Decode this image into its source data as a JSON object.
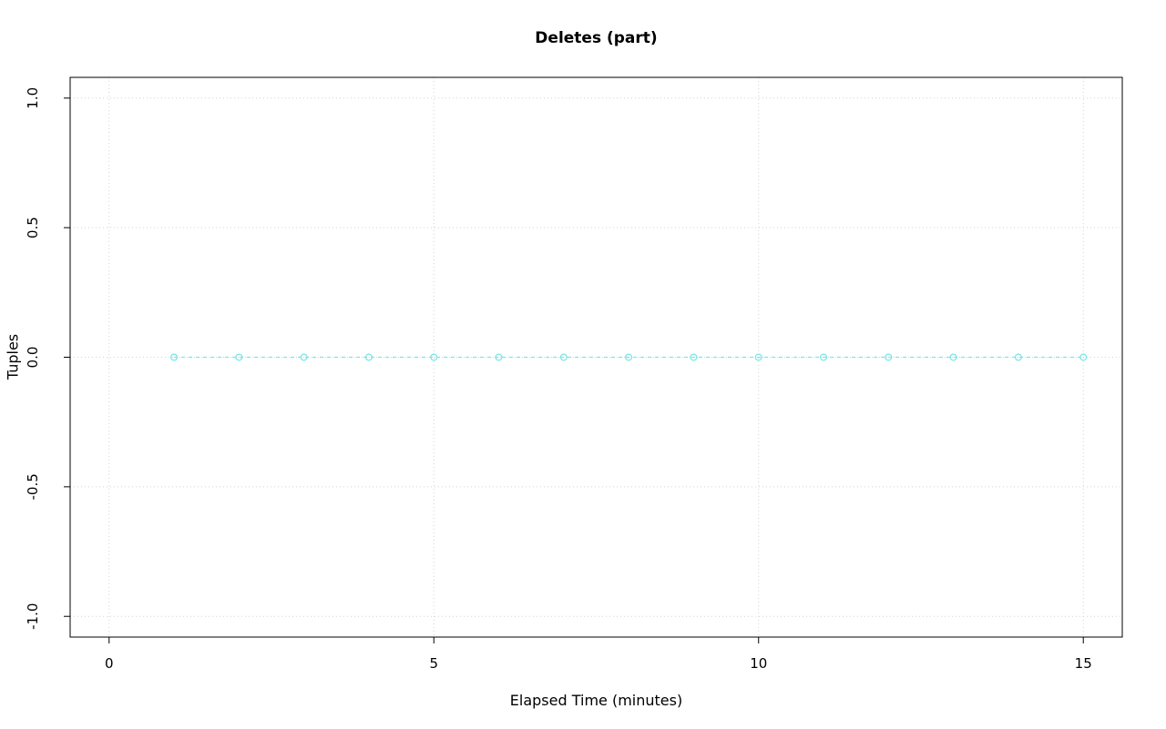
{
  "chart_data": {
    "type": "line",
    "title": "Deletes (part)",
    "xlabel": "Elapsed Time (minutes)",
    "ylabel": "Tuples",
    "x": [
      1,
      2,
      3,
      4,
      5,
      6,
      7,
      8,
      9,
      10,
      11,
      12,
      13,
      14,
      15
    ],
    "y": [
      0,
      0,
      0,
      0,
      0,
      0,
      0,
      0,
      0,
      0,
      0,
      0,
      0,
      0,
      0
    ],
    "xlim": [
      0,
      15
    ],
    "ylim": [
      -1.0,
      1.0
    ],
    "x_ticks": [
      {
        "v": 0,
        "label": "0"
      },
      {
        "v": 5,
        "label": "5"
      },
      {
        "v": 10,
        "label": "10"
      },
      {
        "v": 15,
        "label": "15"
      }
    ],
    "y_ticks": [
      {
        "v": -1.0,
        "label": "-1.0"
      },
      {
        "v": -0.5,
        "label": "-0.5"
      },
      {
        "v": 0.0,
        "label": "0.0"
      },
      {
        "v": 0.5,
        "label": "0.5"
      },
      {
        "v": 1.0,
        "label": "1.0"
      }
    ],
    "grid": true,
    "legend": null,
    "style": {
      "series_color": "#7de6e6",
      "line_style": "dashed",
      "marker": "open-circle",
      "grid_color": "#d4d4d4",
      "grid_style": "dotted",
      "axis_color": "#000000",
      "background": "#ffffff"
    }
  }
}
